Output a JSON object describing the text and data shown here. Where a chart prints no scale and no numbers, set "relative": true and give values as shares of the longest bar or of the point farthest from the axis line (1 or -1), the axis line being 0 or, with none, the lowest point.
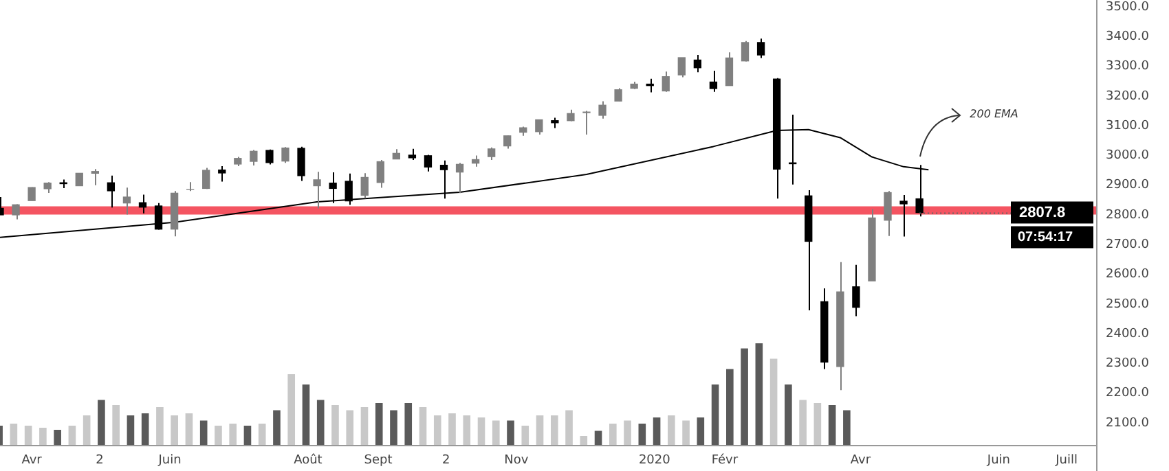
{
  "chart_data": [
    {
      "type": "candlestick",
      "x": [
        "2019-03-18",
        "2019-03-25",
        "2019-04-01",
        "2019-04-08",
        "2019-04-15",
        "2019-04-22",
        "2019-04-29",
        "2019-05-06",
        "2019-05-13",
        "2019-05-20",
        "2019-05-27",
        "2019-06-03",
        "2019-06-10",
        "2019-06-17",
        "2019-06-24",
        "2019-07-01",
        "2019-07-08",
        "2019-07-15",
        "2019-07-22",
        "2019-07-29",
        "2019-08-05",
        "2019-08-12",
        "2019-08-19",
        "2019-08-26",
        "2019-09-02",
        "2019-09-09",
        "2019-09-16",
        "2019-09-23",
        "2019-09-30",
        "2019-10-07",
        "2019-10-14",
        "2019-10-21",
        "2019-10-28",
        "2019-11-04",
        "2019-11-11",
        "2019-11-18",
        "2019-11-25",
        "2019-12-02",
        "2019-12-09",
        "2019-12-16",
        "2019-12-23",
        "2019-12-30",
        "2020-01-06",
        "2020-01-13",
        "2020-01-20",
        "2020-01-27",
        "2020-02-03",
        "2020-02-10",
        "2020-02-17",
        "2020-02-24",
        "2020-03-02",
        "2020-03-09",
        "2020-03-16",
        "2020-03-23",
        "2020-03-30",
        "2020-04-06",
        "2020-04-13",
        "2020-04-20",
        "2020-04-27"
      ],
      "ohlc": [
        [
          2822,
          2860,
          2800,
          2800
        ],
        [
          2800,
          2836,
          2785,
          2834
        ],
        [
          2848,
          2893,
          2848,
          2892
        ],
        [
          2888,
          2910,
          2874,
          2907
        ],
        [
          2908,
          2919,
          2890,
          2905
        ],
        [
          2898,
          2940,
          2898,
          2940
        ],
        [
          2940,
          2954,
          2900,
          2946
        ],
        [
          2908,
          2932,
          2825,
          2881
        ],
        [
          2840,
          2892,
          2801,
          2860
        ],
        [
          2841,
          2868,
          2805,
          2826
        ],
        [
          2830,
          2840,
          2750,
          2752
        ],
        [
          2752,
          2880,
          2728,
          2873
        ],
        [
          2886,
          2910,
          2880,
          2886
        ],
        [
          2889,
          2958,
          2887,
          2950
        ],
        [
          2951,
          2964,
          2912,
          2941
        ],
        [
          2971,
          2995,
          2964,
          2990
        ],
        [
          2980,
          3018,
          2966,
          3014
        ],
        [
          3017,
          3020,
          2970,
          2976
        ],
        [
          2981,
          3028,
          2975,
          3025
        ],
        [
          3024,
          3029,
          2914,
          2932
        ],
        [
          2898,
          2945,
          2822,
          2918
        ],
        [
          2907,
          2943,
          2840,
          2889
        ],
        [
          2913,
          2939,
          2834,
          2847
        ],
        [
          2866,
          2940,
          2856,
          2926
        ],
        [
          2909,
          2985,
          2891,
          2979
        ],
        [
          2988,
          3021,
          2988,
          3007
        ],
        [
          3001,
          3022,
          2985,
          2992
        ],
        [
          2999,
          3002,
          2946,
          2961
        ],
        [
          2967,
          2983,
          2855,
          2952
        ],
        [
          2944,
          2975,
          2873,
          2970
        ],
        [
          2974,
          3000,
          2962,
          2986
        ],
        [
          2996,
          3027,
          2985,
          3022
        ],
        [
          3032,
          3067,
          3023,
          3066
        ],
        [
          3078,
          3097,
          3066,
          3093
        ],
        [
          3080,
          3120,
          3070,
          3120
        ],
        [
          3117,
          3127,
          3092,
          3110
        ],
        [
          3117,
          3154,
          3115,
          3141
        ],
        [
          3144,
          3150,
          3070,
          3146
        ],
        [
          3135,
          3182,
          3124,
          3169
        ],
        [
          3183,
          3226,
          3183,
          3221
        ],
        [
          3226,
          3248,
          3223,
          3240
        ],
        [
          3240,
          3258,
          3212,
          3235
        ],
        [
          3217,
          3282,
          3214,
          3265
        ],
        [
          3271,
          3329,
          3263,
          3329
        ],
        [
          3321,
          3338,
          3280,
          3295
        ],
        [
          3247,
          3285,
          3214,
          3225
        ],
        [
          3235,
          3347,
          3235,
          3328
        ],
        [
          3318,
          3385,
          3316,
          3380
        ],
        [
          3380,
          3393,
          3328,
          3338
        ],
        [
          3257,
          3260,
          2855,
          2954
        ],
        [
          2975,
          3137,
          2902,
          2972
        ],
        [
          2864,
          2883,
          2479,
          2711
        ],
        [
          2508,
          2553,
          2281,
          2305
        ],
        [
          2290,
          2641,
          2210,
          2541
        ],
        [
          2558,
          2632,
          2459,
          2489
        ],
        [
          2578,
          2819,
          2578,
          2790
        ],
        [
          2782,
          2880,
          2729,
          2875
        ],
        [
          2846,
          2867,
          2727,
          2837
        ],
        [
          2854,
          2968,
          2795,
          2807.8
        ]
      ],
      "colors": [
        "#000000",
        "#808080",
        "#808080",
        "#808080",
        "#000000",
        "#808080",
        "#808080",
        "#000000",
        "#808080",
        "#000000",
        "#000000",
        "#808080",
        "#808080",
        "#808080",
        "#000000",
        "#808080",
        "#808080",
        "#000000",
        "#808080",
        "#000000",
        "#808080",
        "#000000",
        "#000000",
        "#808080",
        "#808080",
        "#808080",
        "#000000",
        "#000000",
        "#000000",
        "#808080",
        "#808080",
        "#808080",
        "#808080",
        "#808080",
        "#808080",
        "#000000",
        "#808080",
        "#808080",
        "#808080",
        "#808080",
        "#808080",
        "#000000",
        "#808080",
        "#808080",
        "#000000",
        "#000000",
        "#808080",
        "#808080",
        "#000000",
        "#000000",
        "#000000",
        "#000000",
        "#000000",
        "#808080",
        "#000000",
        "#808080",
        "#808080",
        "#000000",
        "#000000"
      ],
      "series": [
        {
          "type": "line",
          "color": "#000000",
          "x": [
            "2019-03-18",
            "2019-06-03",
            "2019-08-05",
            "2019-10-07",
            "2019-12-02",
            "2020-01-27",
            "2020-02-24",
            "2020-03-09",
            "2020-03-23",
            "2020-04-06",
            "2020-04-20",
            "2020-05-01"
          ],
          "values": [
            2724,
            2775,
            2844,
            2876,
            2936,
            3030,
            3084,
            3087,
            3060,
            2995,
            2962,
            2952
          ]
        }
      ],
      "xlim": [
        "2019-03-18",
        "2020-07-14"
      ],
      "xticks": [
        {
          "value": "2019-04-01",
          "label": "Avr"
        },
        {
          "value": "2019-05-01",
          "label": "2"
        },
        {
          "value": "2019-06-01",
          "label": "Juin"
        },
        {
          "value": "2019-08-01",
          "label": "Août"
        },
        {
          "value": "2019-09-01",
          "label": "Sept"
        },
        {
          "value": "2019-10-01",
          "label": "2"
        },
        {
          "value": "2019-11-01",
          "label": "Nov"
        },
        {
          "value": "2020-01-01",
          "label": "2020"
        },
        {
          "value": "2020-02-01",
          "label": "Févr"
        },
        {
          "value": "2020-04-01",
          "label": "Avr"
        },
        {
          "value": "2020-06-01",
          "label": "Juin"
        },
        {
          "value": "2020-07-01",
          "label": "Juill"
        }
      ],
      "ylim": [
        2026,
        3523
      ],
      "yticks": [
        {
          "value": 2100,
          "label": "2100.0"
        },
        {
          "value": 2200,
          "label": "2200.0"
        },
        {
          "value": 2300,
          "label": "2300.0"
        },
        {
          "value": 2400,
          "label": "2400.0"
        },
        {
          "value": 2500,
          "label": "2500.0"
        },
        {
          "value": 2600,
          "label": "2600.0"
        },
        {
          "value": 2700,
          "label": "2700.0"
        },
        {
          "value": 2800,
          "label": "2800.0"
        },
        {
          "value": 2900,
          "label": "2900.0"
        },
        {
          "value": 3000,
          "label": "3000.0"
        },
        {
          "value": 3100,
          "label": "3100.0"
        },
        {
          "value": 3200,
          "label": "3200.0"
        },
        {
          "value": 3300,
          "label": "3300.0"
        },
        {
          "value": 3400,
          "label": "3400.0"
        },
        {
          "value": 3500,
          "label": "3500.0"
        }
      ],
      "ref_lines": [
        {
          "axis": "y",
          "value": 2815,
          "color": "#f23645"
        }
      ],
      "annotations": [
        "200 EMA",
        {
          "text": "2807.8",
          "x": "2020-04-27",
          "y": 2807.8
        },
        "07:54:17"
      ],
      "grid": false,
      "legend": false
    },
    {
      "type": "bar",
      "relative": true,
      "categories": [
        null,
        null,
        null,
        null,
        null,
        null,
        null,
        null,
        null,
        null,
        null,
        null,
        null,
        null,
        null,
        null,
        null,
        null,
        null,
        null,
        null,
        null,
        null,
        null,
        null,
        null,
        null,
        null,
        null,
        null,
        null,
        null,
        null,
        null,
        null,
        null,
        null,
        null,
        null,
        null,
        null,
        null,
        null,
        null,
        null,
        null,
        null,
        null,
        null,
        null,
        null,
        null,
        null,
        null,
        null,
        null,
        null,
        null,
        null
      ],
      "values": [
        0.2,
        0.22,
        0.2,
        0.18,
        0.16,
        0.2,
        0.3,
        0.45,
        0.4,
        0.3,
        0.32,
        0.38,
        0.3,
        0.32,
        0.25,
        0.2,
        0.22,
        0.2,
        0.22,
        0.35,
        0.7,
        0.6,
        0.45,
        0.4,
        0.35,
        0.38,
        0.42,
        0.35,
        0.42,
        0.38,
        0.3,
        0.32,
        0.3,
        0.28,
        0.25,
        0.25,
        0.2,
        0.3,
        0.3,
        0.35,
        0.1,
        0.15,
        0.22,
        0.25,
        0.22,
        0.28,
        0.3,
        0.25,
        0.28,
        0.6,
        0.75,
        0.95,
        1.0,
        0.85,
        0.6,
        0.45,
        0.42,
        0.4,
        0.35
      ],
      "colors": [
        "#5a5a5a",
        "#c8c8c8",
        "#c8c8c8",
        "#c8c8c8",
        "#5a5a5a",
        "#c8c8c8",
        "#c8c8c8",
        "#5a5a5a",
        "#c8c8c8",
        "#5a5a5a",
        "#5a5a5a",
        "#c8c8c8",
        "#c8c8c8",
        "#c8c8c8",
        "#5a5a5a",
        "#c8c8c8",
        "#c8c8c8",
        "#5a5a5a",
        "#c8c8c8",
        "#5a5a5a",
        "#c8c8c8",
        "#5a5a5a",
        "#5a5a5a",
        "#c8c8c8",
        "#c8c8c8",
        "#c8c8c8",
        "#5a5a5a",
        "#5a5a5a",
        "#5a5a5a",
        "#c8c8c8",
        "#c8c8c8",
        "#c8c8c8",
        "#c8c8c8",
        "#c8c8c8",
        "#c8c8c8",
        "#5a5a5a",
        "#c8c8c8",
        "#c8c8c8",
        "#c8c8c8",
        "#c8c8c8",
        "#c8c8c8",
        "#5a5a5a",
        "#c8c8c8",
        "#c8c8c8",
        "#5a5a5a",
        "#5a5a5a",
        "#c8c8c8",
        "#c8c8c8",
        "#5a5a5a",
        "#5a5a5a",
        "#5a5a5a",
        "#5a5a5a",
        "#5a5a5a",
        "#c8c8c8",
        "#5a5a5a",
        "#c8c8c8",
        "#c8c8c8",
        "#5a5a5a",
        "#5a5a5a"
      ]
    }
  ]
}
